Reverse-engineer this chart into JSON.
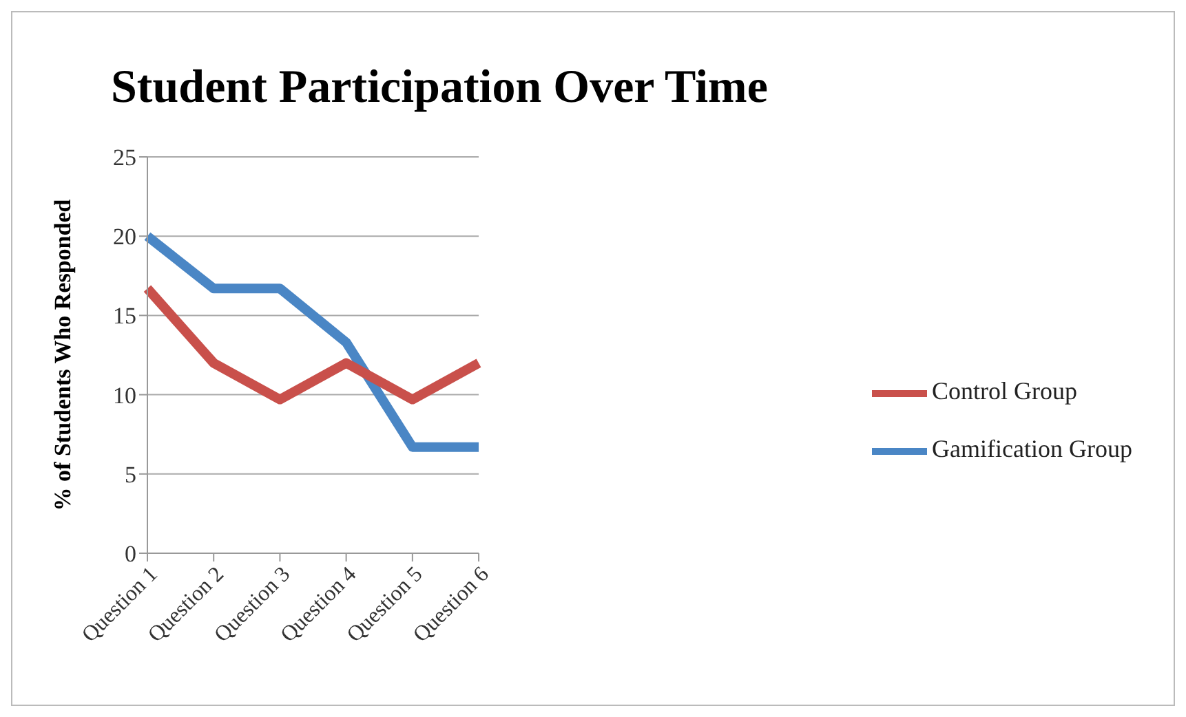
{
  "chart_data": {
    "type": "line",
    "title": "Student Participation Over Time",
    "ylabel": "% of Students Who Responded",
    "categories": [
      "Question 1",
      "Question 2",
      "Question 3",
      "Question 4",
      "Question 5",
      "Question 6"
    ],
    "series": [
      {
        "name": "Gamification Group",
        "color": "#4a86c5",
        "values": [
          20,
          16.7,
          16.7,
          13.3,
          6.7,
          6.7
        ]
      },
      {
        "name": "Control Group",
        "color": "#c9504b",
        "values": [
          16.7,
          12,
          9.7,
          12,
          9.7,
          12
        ]
      }
    ],
    "ylim": [
      0,
      25
    ],
    "yticks": [
      0,
      5,
      10,
      15,
      20,
      25
    ],
    "grid": "y",
    "legend": "right",
    "marker": "none",
    "line_style": "solid"
  }
}
